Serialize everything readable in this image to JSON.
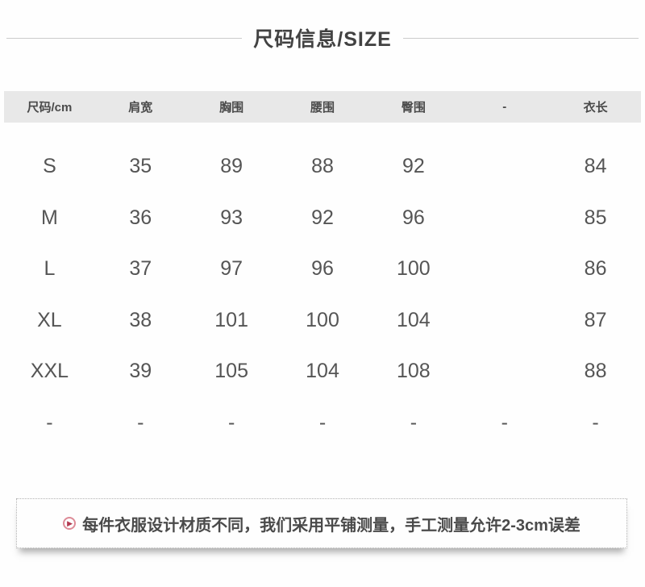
{
  "title": {
    "text": "尺码信息/SIZE"
  },
  "table": {
    "headers": [
      "尺码/cm",
      "肩宽",
      "胸围",
      "腰围",
      "臀围",
      "-",
      "衣长"
    ],
    "rows": [
      [
        "S",
        "35",
        "89",
        "88",
        "92",
        "",
        "84"
      ],
      [
        "M",
        "36",
        "93",
        "92",
        "96",
        "",
        "85"
      ],
      [
        "L",
        "37",
        "97",
        "96",
        "100",
        "",
        "86"
      ],
      [
        "XL",
        "38",
        "101",
        "100",
        "104",
        "",
        "87"
      ],
      [
        "XXL",
        "39",
        "105",
        "104",
        "108",
        "",
        "88"
      ],
      [
        "-",
        "-",
        "-",
        "-",
        "-",
        "-",
        "-"
      ]
    ]
  },
  "note": {
    "icon": "play-circle-icon",
    "icon_glyph": "▶",
    "text": "每件衣服设计材质不同，我们采用平铺测量，手工测量允许2-3cm误差"
  },
  "colors": {
    "header_band": "#e8e8e8",
    "divider_line": "#cccccc",
    "title_text": "#424242",
    "data_text": "#555555",
    "note_border": "#b2b2b2",
    "icon_red": "#b23950",
    "icon_ring": "#dd8b97"
  }
}
